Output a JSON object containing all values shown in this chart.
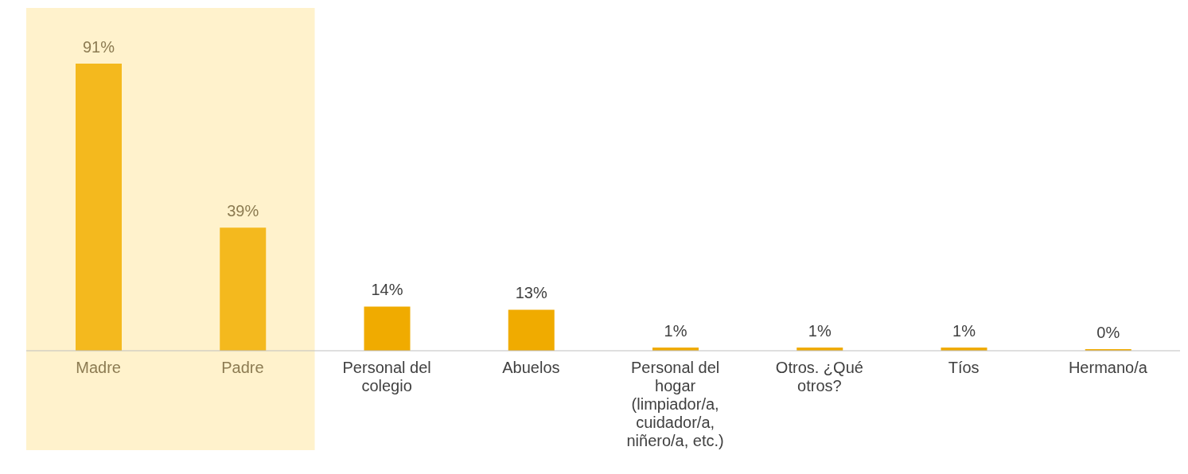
{
  "chart_data": {
    "type": "bar",
    "categories": [
      "Madre",
      "Padre",
      "Personal del colegio",
      "Abuelos",
      "Personal del hogar (limpiador/a, cuidador/a, niñero/a, etc.)",
      "Otros. ¿Qué otros?",
      "Tíos",
      "Hermano/a"
    ],
    "values": [
      91,
      39,
      14,
      13,
      1,
      1,
      1,
      0
    ],
    "colors": [
      "#f4b91e",
      "#f4b91e",
      "#f0ab00",
      "#f0ab00",
      "#f0ab00",
      "#f0ab00",
      "#f0ab00",
      "#f0ab00"
    ],
    "value_labels": [
      "91%",
      "39%",
      "14%",
      "13%",
      "1%",
      "1%",
      "1%",
      "0%"
    ],
    "bands": [
      {
        "axis": "x",
        "from": "Madre",
        "to": "Padre",
        "color": "#fff2cc"
      }
    ]
  }
}
